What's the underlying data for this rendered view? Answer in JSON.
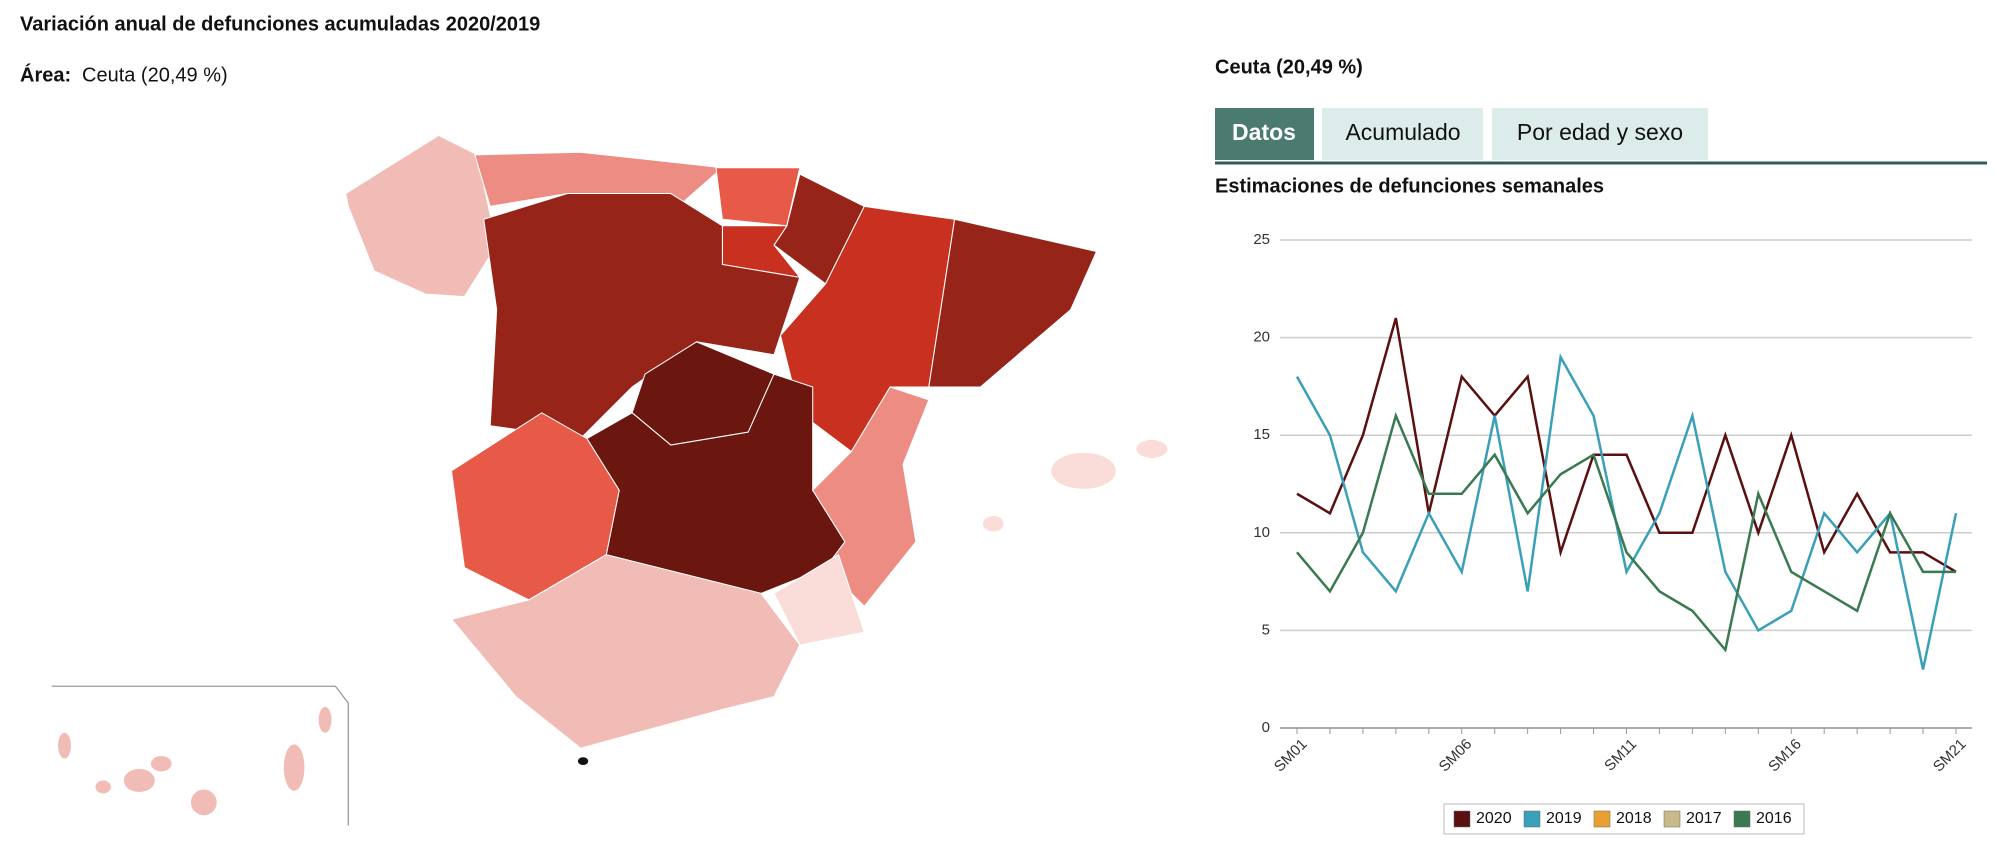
{
  "header": {
    "title": "Variación anual de defunciones acumuladas 2020/2019",
    "area_label": "Área:",
    "area_value": "Ceuta (20,49 %)"
  },
  "panel": {
    "title": "Ceuta (20,49 %)",
    "tabs": [
      "Datos",
      "Acumulado",
      "Por edad y sexo"
    ]
  },
  "chart_data": {
    "type": "line",
    "title": "Estimaciones de defunciones semanales",
    "categories": [
      "SM01",
      null,
      null,
      null,
      null,
      "SM06",
      null,
      null,
      null,
      null,
      "SM11",
      null,
      null,
      null,
      null,
      "SM16",
      null,
      null,
      null,
      null,
      "SM21"
    ],
    "series": [
      {
        "name": "2020",
        "color": "#5a1010",
        "values": [
          12,
          11,
          15,
          21,
          11,
          18,
          16,
          18,
          9,
          14,
          14,
          10,
          10,
          15,
          10,
          15,
          9,
          12,
          9,
          9,
          8
        ]
      },
      {
        "name": "2019",
        "color": "#3a9fb8",
        "values": [
          18,
          15,
          9,
          7,
          11,
          8,
          16,
          7,
          19,
          16,
          8,
          11,
          16,
          8,
          5,
          6,
          11,
          9,
          11,
          3,
          11
        ]
      },
      {
        "name": "2018",
        "color": "#e8a030",
        "values": [
          null,
          null,
          null,
          null,
          null,
          null,
          null,
          null,
          null,
          null,
          null,
          null,
          null,
          null,
          null,
          null,
          null,
          null,
          null,
          null,
          null
        ]
      },
      {
        "name": "2017",
        "color": "#c8b88a",
        "values": [
          null,
          null,
          null,
          null,
          null,
          null,
          null,
          null,
          null,
          null,
          null,
          null,
          null,
          null,
          null,
          null,
          null,
          null,
          null,
          null,
          null
        ]
      },
      {
        "name": "2016",
        "color": "#3a7a50",
        "values": [
          9,
          7,
          10,
          16,
          12,
          12,
          14,
          11,
          13,
          14,
          9,
          7,
          6,
          4,
          12,
          8,
          7,
          6,
          11,
          8,
          8
        ]
      }
    ],
    "ylim": [
      0,
      25
    ],
    "yticks": [
      0,
      5,
      10,
      15,
      20,
      25
    ],
    "grid": true
  }
}
